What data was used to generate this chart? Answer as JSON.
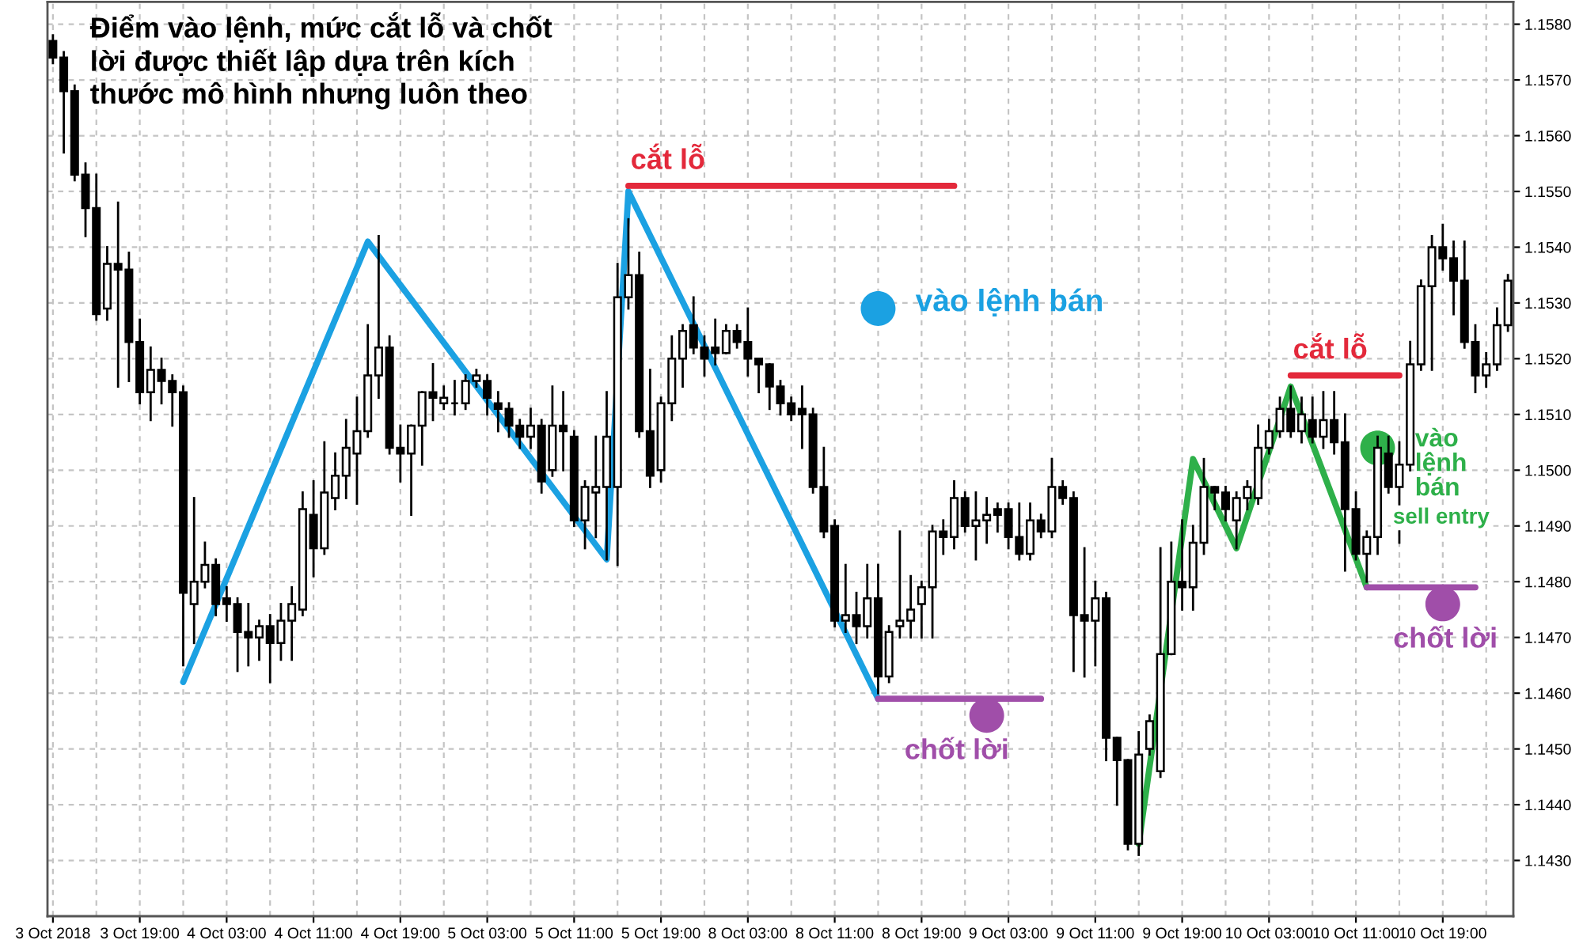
{
  "chart_data": {
    "type": "candlestick",
    "title": "Điểm vào lệnh, mức cắt lỗ và chốt\nlời được thiết lập dựa trên kích\nthước mô hình nhưng luôn theo",
    "categories": [
      "3 Oct 2018",
      null,
      null,
      null,
      null,
      null,
      null,
      null,
      "3 Oct 19:00",
      null,
      null,
      null,
      null,
      null,
      null,
      null,
      "4 Oct 03:00",
      null,
      null,
      null,
      null,
      null,
      null,
      null,
      "4 Oct 11:00",
      null,
      null,
      null,
      null,
      null,
      null,
      null,
      "4 Oct 19:00",
      null,
      null,
      null,
      null,
      null,
      null,
      null,
      "5 Oct 03:00",
      null,
      null,
      null,
      null,
      null,
      null,
      null,
      "5 Oct 11:00",
      null,
      null,
      null,
      null,
      null,
      null,
      null,
      "5 Oct 19:00",
      null,
      null,
      null,
      null,
      null,
      null,
      null,
      "8 Oct 03:00",
      null,
      null,
      null,
      null,
      null,
      null,
      null,
      "8 Oct 11:00",
      null,
      null,
      null,
      null,
      null,
      null,
      null,
      "8 Oct 19:00",
      null,
      null,
      null,
      null,
      null,
      null,
      null,
      "9 Oct 03:00",
      null,
      null,
      null,
      null,
      null,
      null,
      null,
      "9 Oct 11:00",
      null,
      null,
      null,
      null,
      null,
      null,
      null,
      "9 Oct 19:00",
      null,
      null,
      null,
      null,
      null,
      null,
      null,
      "10 Oct 03:00",
      null,
      null,
      null,
      null,
      null,
      null,
      null,
      "10 Oct 11:00",
      null,
      null,
      null,
      null,
      null,
      null,
      null,
      "10 Oct 19:00",
      null,
      null,
      null,
      null,
      null,
      null
    ],
    "ohlc": [
      [
        1.1577,
        1.1578,
        1.1573,
        1.1574
      ],
      [
        1.1574,
        1.1575,
        1.1557,
        1.1568
      ],
      [
        1.1568,
        1.1569,
        1.1552,
        1.1553
      ],
      [
        1.1553,
        1.1555,
        1.1542,
        1.1547
      ],
      [
        1.1547,
        1.1553,
        1.1527,
        1.1528
      ],
      [
        1.1529,
        1.154,
        1.1527,
        1.1537
      ],
      [
        1.1537,
        1.1548,
        1.1515,
        1.1536
      ],
      [
        1.1536,
        1.1539,
        1.1516,
        1.1523
      ],
      [
        1.1523,
        1.1527,
        1.1512,
        1.1514
      ],
      [
        1.1514,
        1.1522,
        1.1509,
        1.1518
      ],
      [
        1.1518,
        1.152,
        1.1512,
        1.1516
      ],
      [
        1.1516,
        1.1517,
        1.1508,
        1.1514
      ],
      [
        1.1514,
        1.1515,
        1.1465,
        1.1478
      ],
      [
        1.1476,
        1.1495,
        1.1469,
        1.148
      ],
      [
        1.148,
        1.1487,
        1.1479,
        1.1483
      ],
      [
        1.1483,
        1.1484,
        1.1474,
        1.1476
      ],
      [
        1.1477,
        1.1479,
        1.1473,
        1.1476
      ],
      [
        1.1476,
        1.1477,
        1.1464,
        1.1471
      ],
      [
        1.1471,
        1.1476,
        1.1465,
        1.147
      ],
      [
        1.147,
        1.1473,
        1.1466,
        1.1472
      ],
      [
        1.1472,
        1.1474,
        1.1462,
        1.1469
      ],
      [
        1.1469,
        1.1476,
        1.1466,
        1.1473
      ],
      [
        1.1473,
        1.1479,
        1.1466,
        1.1476
      ],
      [
        1.1475,
        1.1496,
        1.1474,
        1.1493
      ],
      [
        1.1492,
        1.1498,
        1.1481,
        1.1486
      ],
      [
        1.1486,
        1.1505,
        1.1485,
        1.1496
      ],
      [
        1.1495,
        1.1503,
        1.1493,
        1.1499
      ],
      [
        1.1499,
        1.1509,
        1.1495,
        1.1504
      ],
      [
        1.1503,
        1.1513,
        1.1494,
        1.1507
      ],
      [
        1.1507,
        1.1526,
        1.1506,
        1.1517
      ],
      [
        1.1517,
        1.1542,
        1.1513,
        1.1522
      ],
      [
        1.1522,
        1.1524,
        1.1503,
        1.1504
      ],
      [
        1.1504,
        1.1508,
        1.1498,
        1.1503
      ],
      [
        1.1503,
        1.1508,
        1.1492,
        1.1508
      ],
      [
        1.1508,
        1.1514,
        1.1501,
        1.1514
      ],
      [
        1.1514,
        1.1519,
        1.1509,
        1.1513
      ],
      [
        1.1512,
        1.1515,
        1.1511,
        1.1513
      ],
      [
        1.1512,
        1.1516,
        1.151,
        1.1512
      ],
      [
        1.1512,
        1.1517,
        1.1511,
        1.1516
      ],
      [
        1.1516,
        1.1518,
        1.1515,
        1.1517
      ],
      [
        1.1516,
        1.1517,
        1.151,
        1.1513
      ],
      [
        1.1512,
        1.1514,
        1.1507,
        1.1511
      ],
      [
        1.1511,
        1.1512,
        1.1506,
        1.1508
      ],
      [
        1.1508,
        1.1509,
        1.1504,
        1.1506
      ],
      [
        1.1506,
        1.1511,
        1.1504,
        1.1508
      ],
      [
        1.1508,
        1.1509,
        1.1496,
        1.1498
      ],
      [
        1.15,
        1.1515,
        1.1499,
        1.1508
      ],
      [
        1.1508,
        1.1514,
        1.15,
        1.1507
      ],
      [
        1.1506,
        1.1507,
        1.149,
        1.1491
      ],
      [
        1.1491,
        1.1498,
        1.1486,
        1.1497
      ],
      [
        1.1496,
        1.1506,
        1.1488,
        1.1497
      ],
      [
        1.1497,
        1.1514,
        1.1484,
        1.1506
      ],
      [
        1.1497,
        1.1537,
        1.1483,
        1.1531
      ],
      [
        1.1531,
        1.1545,
        1.1529,
        1.1535
      ],
      [
        1.1535,
        1.1539,
        1.1506,
        1.1507
      ],
      [
        1.1507,
        1.1518,
        1.1497,
        1.1499
      ],
      [
        1.15,
        1.1513,
        1.1498,
        1.1512
      ],
      [
        1.1512,
        1.1524,
        1.1509,
        1.152
      ],
      [
        1.152,
        1.1526,
        1.1515,
        1.1525
      ],
      [
        1.1526,
        1.1531,
        1.1521,
        1.1522
      ],
      [
        1.1522,
        1.1524,
        1.1517,
        1.152
      ],
      [
        1.1522,
        1.1527,
        1.1519,
        1.1521
      ],
      [
        1.1521,
        1.1526,
        1.1521,
        1.1525
      ],
      [
        1.1525,
        1.1526,
        1.1522,
        1.1523
      ],
      [
        1.1523,
        1.1529,
        1.1517,
        1.152
      ],
      [
        1.152,
        1.152,
        1.1514,
        1.1519
      ],
      [
        1.1519,
        1.1519,
        1.1511,
        1.1515
      ],
      [
        1.1515,
        1.1516,
        1.151,
        1.1512
      ],
      [
        1.1512,
        1.1513,
        1.1509,
        1.151
      ],
      [
        1.1511,
        1.1515,
        1.1504,
        1.151
      ],
      [
        1.151,
        1.1511,
        1.1496,
        1.1497
      ],
      [
        1.1497,
        1.1504,
        1.1488,
        1.1489
      ],
      [
        1.149,
        1.1491,
        1.1472,
        1.1473
      ],
      [
        1.1473,
        1.1483,
        1.1471,
        1.1474
      ],
      [
        1.1474,
        1.1478,
        1.1469,
        1.1472
      ],
      [
        1.1472,
        1.1483,
        1.147,
        1.1477
      ],
      [
        1.1477,
        1.1483,
        1.146,
        1.1463
      ],
      [
        1.1463,
        1.1472,
        1.1462,
        1.1471
      ],
      [
        1.1472,
        1.1489,
        1.147,
        1.1473
      ],
      [
        1.1473,
        1.1481,
        1.147,
        1.1475
      ],
      [
        1.1476,
        1.148,
        1.147,
        1.1479
      ],
      [
        1.1479,
        1.149,
        1.147,
        1.1489
      ],
      [
        1.1489,
        1.1491,
        1.1485,
        1.1488
      ],
      [
        1.1488,
        1.1498,
        1.1486,
        1.1495
      ],
      [
        1.1495,
        1.1496,
        1.1489,
        1.149
      ],
      [
        1.149,
        1.1496,
        1.1484,
        1.1491
      ],
      [
        1.1491,
        1.1495,
        1.1487,
        1.1492
      ],
      [
        1.1493,
        1.1494,
        1.1489,
        1.1492
      ],
      [
        1.1493,
        1.1494,
        1.1486,
        1.1488
      ],
      [
        1.1488,
        1.1494,
        1.1484,
        1.1485
      ],
      [
        1.1485,
        1.1494,
        1.1484,
        1.1491
      ],
      [
        1.1491,
        1.1492,
        1.1488,
        1.1489
      ],
      [
        1.1489,
        1.1502,
        1.1488,
        1.1497
      ],
      [
        1.1497,
        1.1498,
        1.1494,
        1.1495
      ],
      [
        1.1495,
        1.1496,
        1.1464,
        1.1474
      ],
      [
        1.1474,
        1.1486,
        1.1463,
        1.1473
      ],
      [
        1.1473,
        1.148,
        1.1465,
        1.1477
      ],
      [
        1.1477,
        1.1478,
        1.1448,
        1.1452
      ],
      [
        1.1452,
        1.1452,
        1.144,
        1.1448
      ],
      [
        1.1448,
        1.1448,
        1.1432,
        1.1433
      ],
      [
        1.1433,
        1.1453,
        1.1431,
        1.1449
      ],
      [
        1.145,
        1.1456,
        1.1449,
        1.1455
      ],
      [
        1.1446,
        1.1486,
        1.1445,
        1.1467
      ],
      [
        1.1467,
        1.1487,
        1.1467,
        1.148
      ],
      [
        1.148,
        1.1491,
        1.1475,
        1.1479
      ],
      [
        1.1479,
        1.149,
        1.1475,
        1.1487
      ],
      [
        1.1487,
        1.1502,
        1.1485,
        1.1497
      ],
      [
        1.1497,
        1.1497,
        1.1493,
        1.1496
      ],
      [
        1.1496,
        1.1497,
        1.1491,
        1.1493
      ],
      [
        1.1491,
        1.1496,
        1.1486,
        1.1495
      ],
      [
        1.1495,
        1.1498,
        1.1493,
        1.1497
      ],
      [
        1.1495,
        1.1508,
        1.1494,
        1.1504
      ],
      [
        1.1504,
        1.1509,
        1.1503,
        1.1507
      ],
      [
        1.1507,
        1.1513,
        1.1506,
        1.1511
      ],
      [
        1.1511,
        1.1515,
        1.1506,
        1.1507
      ],
      [
        1.1507,
        1.1513,
        1.1505,
        1.151
      ],
      [
        1.1509,
        1.1513,
        1.1505,
        1.1506
      ],
      [
        1.1506,
        1.1514,
        1.1504,
        1.1509
      ],
      [
        1.1509,
        1.1514,
        1.1503,
        1.1505
      ],
      [
        1.1505,
        1.151,
        1.1482,
        1.1493
      ],
      [
        1.1493,
        1.1496,
        1.1484,
        1.1485
      ],
      [
        1.1485,
        1.1489,
        1.148,
        1.1488
      ],
      [
        1.1488,
        1.1506,
        1.1485,
        1.1504
      ],
      [
        1.1503,
        1.1506,
        1.1496,
        1.1497
      ],
      [
        1.1497,
        1.1505,
        1.1487,
        1.1501
      ],
      [
        1.1501,
        1.1523,
        1.15,
        1.1519
      ],
      [
        1.1519,
        1.1534,
        1.1518,
        1.1533
      ],
      [
        1.1533,
        1.1542,
        1.1518,
        1.154
      ],
      [
        1.154,
        1.1544,
        1.1536,
        1.1538
      ],
      [
        1.1538,
        1.1541,
        1.1528,
        1.1534
      ],
      [
        1.1534,
        1.1541,
        1.1522,
        1.1523
      ],
      [
        1.1523,
        1.1526,
        1.1514,
        1.1517
      ],
      [
        1.1517,
        1.1521,
        1.1515,
        1.1519
      ],
      [
        1.1519,
        1.1529,
        1.1518,
        1.1526
      ],
      [
        1.1526,
        1.1535,
        1.1525,
        1.1534
      ]
    ],
    "series": [
      {
        "type": "line",
        "color": "#1ba1e2",
        "values": [
          null,
          null,
          null,
          null,
          null,
          null,
          null,
          null,
          null,
          null,
          null,
          null,
          1.1462,
          null,
          null,
          null,
          null,
          null,
          null,
          null,
          null,
          null,
          null,
          null,
          null,
          null,
          null,
          null,
          null,
          1.1541,
          null,
          null,
          null,
          null,
          null,
          null,
          null,
          null,
          null,
          null,
          null,
          null,
          null,
          null,
          null,
          null,
          null,
          null,
          null,
          null,
          null,
          1.1484,
          null,
          1.155,
          null,
          null,
          null,
          null,
          null,
          null,
          null,
          null,
          null,
          null,
          null,
          null,
          null,
          null,
          null,
          null,
          null,
          null,
          null,
          null,
          null,
          null,
          1.1459,
          null,
          null,
          null,
          null,
          null,
          null,
          null,
          null,
          null,
          null,
          null,
          null,
          null,
          null,
          null,
          null,
          null,
          null,
          null,
          null,
          null,
          null,
          null,
          null,
          null,
          null,
          null,
          null,
          null,
          null,
          null,
          null,
          null,
          null,
          null,
          null,
          null,
          null,
          null,
          null,
          null,
          null,
          null,
          null,
          null,
          null,
          null,
          null,
          null,
          null,
          null,
          null,
          null,
          null,
          null,
          null,
          null,
          null
        ]
      },
      {
        "type": "line",
        "color": "#2eb04a",
        "values": [
          null,
          null,
          null,
          null,
          null,
          null,
          null,
          null,
          null,
          null,
          null,
          null,
          null,
          null,
          null,
          null,
          null,
          null,
          null,
          null,
          null,
          null,
          null,
          null,
          null,
          null,
          null,
          null,
          null,
          null,
          null,
          null,
          null,
          null,
          null,
          null,
          null,
          null,
          null,
          null,
          null,
          null,
          null,
          null,
          null,
          null,
          null,
          null,
          null,
          null,
          null,
          null,
          null,
          null,
          null,
          null,
          null,
          null,
          null,
          null,
          null,
          null,
          null,
          null,
          null,
          null,
          null,
          null,
          null,
          null,
          null,
          null,
          null,
          null,
          null,
          null,
          null,
          null,
          null,
          null,
          null,
          null,
          null,
          null,
          null,
          null,
          null,
          null,
          null,
          null,
          null,
          null,
          null,
          null,
          null,
          null,
          null,
          null,
          null,
          null,
          1.1433,
          null,
          null,
          null,
          null,
          1.1502,
          null,
          null,
          null,
          1.1486,
          null,
          null,
          null,
          null,
          1.1515,
          null,
          null,
          null,
          null,
          null,
          null,
          1.1479,
          null,
          null,
          null,
          null,
          null,
          null,
          null,
          null,
          null,
          null,
          null,
          null,
          null
        ]
      },
      {
        "type": "line",
        "name": "cắt lỗ",
        "color": "#e3293b",
        "values": [
          null,
          null,
          null,
          null,
          null,
          null,
          null,
          null,
          null,
          null,
          null,
          null,
          null,
          null,
          null,
          null,
          null,
          null,
          null,
          null,
          null,
          null,
          null,
          null,
          null,
          null,
          null,
          null,
          null,
          null,
          null,
          null,
          null,
          null,
          null,
          null,
          null,
          null,
          null,
          null,
          null,
          null,
          null,
          null,
          null,
          null,
          null,
          null,
          null,
          null,
          null,
          null,
          null,
          1.1551,
          null,
          null,
          null,
          null,
          null,
          null,
          null,
          null,
          null,
          null,
          null,
          null,
          null,
          null,
          null,
          null,
          null,
          null,
          null,
          null,
          null,
          null,
          null,
          null,
          null,
          null,
          null,
          null,
          null,
          1.1551,
          null,
          null,
          null,
          null,
          null,
          null,
          null,
          null,
          null,
          null,
          null,
          null,
          null,
          null,
          null,
          null,
          null,
          null,
          null,
          null,
          null,
          null,
          null,
          null,
          null,
          null,
          null,
          null,
          null,
          null,
          null,
          null,
          null,
          null,
          null,
          null,
          null,
          null,
          null,
          null,
          null,
          null,
          null,
          null,
          null,
          null,
          null,
          null,
          null,
          null,
          null
        ]
      },
      {
        "type": "line",
        "name": "cắt lỗ",
        "color": "#e3293b",
        "values": [
          null,
          null,
          null,
          null,
          null,
          null,
          null,
          null,
          null,
          null,
          null,
          null,
          null,
          null,
          null,
          null,
          null,
          null,
          null,
          null,
          null,
          null,
          null,
          null,
          null,
          null,
          null,
          null,
          null,
          null,
          null,
          null,
          null,
          null,
          null,
          null,
          null,
          null,
          null,
          null,
          null,
          null,
          null,
          null,
          null,
          null,
          null,
          null,
          null,
          null,
          null,
          null,
          null,
          null,
          null,
          null,
          null,
          null,
          null,
          null,
          null,
          null,
          null,
          null,
          null,
          null,
          null,
          null,
          null,
          null,
          null,
          null,
          null,
          null,
          null,
          null,
          null,
          null,
          null,
          null,
          null,
          null,
          null,
          null,
          null,
          null,
          null,
          null,
          null,
          null,
          null,
          null,
          null,
          null,
          null,
          null,
          null,
          null,
          null,
          null,
          null,
          null,
          null,
          null,
          null,
          null,
          null,
          null,
          null,
          null,
          null,
          null,
          null,
          null,
          1.1517,
          null,
          null,
          null,
          null,
          null,
          null,
          null,
          null,
          null,
          1.1517,
          null,
          null,
          null,
          null,
          null,
          null,
          null,
          null,
          null,
          null
        ]
      },
      {
        "type": "line",
        "name": "chốt lời",
        "color": "#a04ea9",
        "values": [
          null,
          null,
          null,
          null,
          null,
          null,
          null,
          null,
          null,
          null,
          null,
          null,
          null,
          null,
          null,
          null,
          null,
          null,
          null,
          null,
          null,
          null,
          null,
          null,
          null,
          null,
          null,
          null,
          null,
          null,
          null,
          null,
          null,
          null,
          null,
          null,
          null,
          null,
          null,
          null,
          null,
          null,
          null,
          null,
          null,
          null,
          null,
          null,
          null,
          null,
          null,
          null,
          null,
          null,
          null,
          null,
          null,
          null,
          null,
          null,
          null,
          null,
          null,
          null,
          null,
          null,
          null,
          null,
          null,
          null,
          null,
          null,
          null,
          null,
          null,
          null,
          1.1459,
          null,
          null,
          null,
          null,
          null,
          null,
          null,
          null,
          null,
          null,
          null,
          null,
          null,
          null,
          1.1459,
          null,
          null,
          null,
          null,
          null,
          null,
          null,
          null,
          null,
          null,
          null,
          null,
          null,
          null,
          null,
          null,
          null,
          null,
          null,
          null,
          null,
          null,
          null,
          null,
          null,
          null,
          null,
          null,
          null,
          null,
          null,
          null,
          null,
          null,
          null,
          null,
          null,
          null,
          null,
          null,
          null,
          null,
          null
        ]
      },
      {
        "type": "line",
        "name": "chốt lời",
        "color": "#a04ea9",
        "values": [
          null,
          null,
          null,
          null,
          null,
          null,
          null,
          null,
          null,
          null,
          null,
          null,
          null,
          null,
          null,
          null,
          null,
          null,
          null,
          null,
          null,
          null,
          null,
          null,
          null,
          null,
          null,
          null,
          null,
          null,
          null,
          null,
          null,
          null,
          null,
          null,
          null,
          null,
          null,
          null,
          null,
          null,
          null,
          null,
          null,
          null,
          null,
          null,
          null,
          null,
          null,
          null,
          null,
          null,
          null,
          null,
          null,
          null,
          null,
          null,
          null,
          null,
          null,
          null,
          null,
          null,
          null,
          null,
          null,
          null,
          null,
          null,
          null,
          null,
          null,
          null,
          null,
          null,
          null,
          null,
          null,
          null,
          null,
          null,
          null,
          null,
          null,
          null,
          null,
          null,
          null,
          null,
          null,
          null,
          null,
          null,
          null,
          null,
          null,
          null,
          null,
          null,
          null,
          null,
          null,
          null,
          null,
          null,
          null,
          null,
          null,
          null,
          null,
          null,
          null,
          null,
          null,
          null,
          null,
          null,
          null,
          1.1479,
          null,
          null,
          null,
          null,
          null,
          null,
          null,
          null,
          null,
          1.1479,
          null,
          null,
          null
        ]
      },
      {
        "type": "scatter",
        "color": "#a04ea9",
        "marker": "circle",
        "values": [
          null,
          null,
          null,
          null,
          null,
          null,
          null,
          null,
          null,
          null,
          null,
          null,
          null,
          null,
          null,
          null,
          null,
          null,
          null,
          null,
          null,
          null,
          null,
          null,
          null,
          null,
          null,
          null,
          null,
          null,
          null,
          null,
          null,
          null,
          null,
          null,
          null,
          null,
          null,
          null,
          null,
          null,
          null,
          null,
          null,
          null,
          null,
          null,
          null,
          null,
          null,
          null,
          null,
          null,
          null,
          null,
          null,
          null,
          null,
          null,
          null,
          null,
          null,
          null,
          null,
          null,
          null,
          null,
          null,
          null,
          null,
          null,
          null,
          null,
          null,
          null,
          null,
          null,
          null,
          null,
          null,
          null,
          null,
          null,
          null,
          null,
          1.1456,
          null,
          null,
          null,
          null,
          null,
          null,
          null,
          null,
          null,
          null,
          null,
          null,
          null,
          null,
          null,
          null,
          null,
          null,
          null,
          null,
          null,
          null,
          null,
          null,
          null,
          null,
          null,
          null,
          null,
          null,
          null,
          null,
          null,
          null,
          null,
          null,
          null,
          null,
          null,
          null,
          null,
          1.1476,
          null,
          null,
          null,
          null,
          null,
          null
        ]
      },
      {
        "type": "scatter",
        "name": "vào lệnh bán",
        "color": "#1ba1e2",
        "marker": "circle",
        "values": [
          null,
          null,
          null,
          null,
          null,
          null,
          null,
          null,
          null,
          null,
          null,
          null,
          null,
          null,
          null,
          null,
          null,
          null,
          null,
          null,
          null,
          null,
          null,
          null,
          null,
          null,
          null,
          null,
          null,
          null,
          null,
          null,
          null,
          null,
          null,
          null,
          null,
          null,
          null,
          null,
          null,
          null,
          null,
          null,
          null,
          null,
          null,
          null,
          null,
          null,
          null,
          null,
          null,
          null,
          null,
          null,
          null,
          null,
          null,
          null,
          null,
          null,
          null,
          null,
          null,
          null,
          null,
          null,
          null,
          null,
          null,
          null,
          null,
          null,
          null,
          null,
          1.1529,
          null,
          null,
          null,
          null,
          null,
          null,
          null,
          null,
          null,
          null,
          null,
          null,
          null,
          null,
          null,
          null,
          null,
          null,
          null,
          null,
          null,
          null,
          null,
          null,
          null,
          null,
          null,
          null,
          null,
          null,
          null,
          null,
          null,
          null,
          null,
          null,
          null,
          null,
          null,
          null,
          null,
          null,
          null,
          null,
          null,
          null,
          null,
          null,
          null,
          null,
          null,
          null,
          null,
          null,
          null,
          null,
          null,
          null
        ]
      },
      {
        "type": "scatter",
        "name": "vào\nlệnh\nbán",
        "color": "#2eb04a",
        "marker": "circle",
        "values": [
          null,
          null,
          null,
          null,
          null,
          null,
          null,
          null,
          null,
          null,
          null,
          null,
          null,
          null,
          null,
          null,
          null,
          null,
          null,
          null,
          null,
          null,
          null,
          null,
          null,
          null,
          null,
          null,
          null,
          null,
          null,
          null,
          null,
          null,
          null,
          null,
          null,
          null,
          null,
          null,
          null,
          null,
          null,
          null,
          null,
          null,
          null,
          null,
          null,
          null,
          null,
          null,
          null,
          null,
          null,
          null,
          null,
          null,
          null,
          null,
          null,
          null,
          null,
          null,
          null,
          null,
          null,
          null,
          null,
          null,
          null,
          null,
          null,
          null,
          null,
          null,
          null,
          null,
          null,
          null,
          null,
          null,
          null,
          null,
          null,
          null,
          null,
          null,
          null,
          null,
          null,
          null,
          null,
          null,
          null,
          null,
          null,
          null,
          null,
          null,
          null,
          null,
          null,
          null,
          null,
          null,
          null,
          null,
          null,
          null,
          null,
          null,
          null,
          null,
          null,
          null,
          null,
          null,
          null,
          null,
          null,
          null,
          1.1504,
          null,
          null,
          null,
          null,
          null,
          null,
          null,
          null,
          null,
          null,
          null,
          null
        ]
      }
    ],
    "annotations": [
      "sell entry"
    ],
    "ylim": [
      1.142,
      1.1584
    ],
    "yticks": [
      {
        "value": 1.143,
        "label": "1.1430"
      },
      {
        "value": 1.144,
        "label": "1.1440"
      },
      {
        "value": 1.145,
        "label": "1.1450"
      },
      {
        "value": 1.146,
        "label": "1.1460"
      },
      {
        "value": 1.147,
        "label": "1.1470"
      },
      {
        "value": 1.148,
        "label": "1.1480"
      },
      {
        "value": 1.149,
        "label": "1.1490"
      },
      {
        "value": 1.15,
        "label": "1.1500"
      },
      {
        "value": 1.151,
        "label": "1.1510"
      },
      {
        "value": 1.152,
        "label": "1.1520"
      },
      {
        "value": 1.153,
        "label": "1.1530"
      },
      {
        "value": 1.154,
        "label": "1.1540"
      },
      {
        "value": 1.155,
        "label": "1.1550"
      },
      {
        "value": 1.156,
        "label": "1.1560"
      },
      {
        "value": 1.157,
        "label": "1.1570"
      },
      {
        "value": 1.158,
        "label": "1.1580"
      }
    ],
    "grid": true
  }
}
